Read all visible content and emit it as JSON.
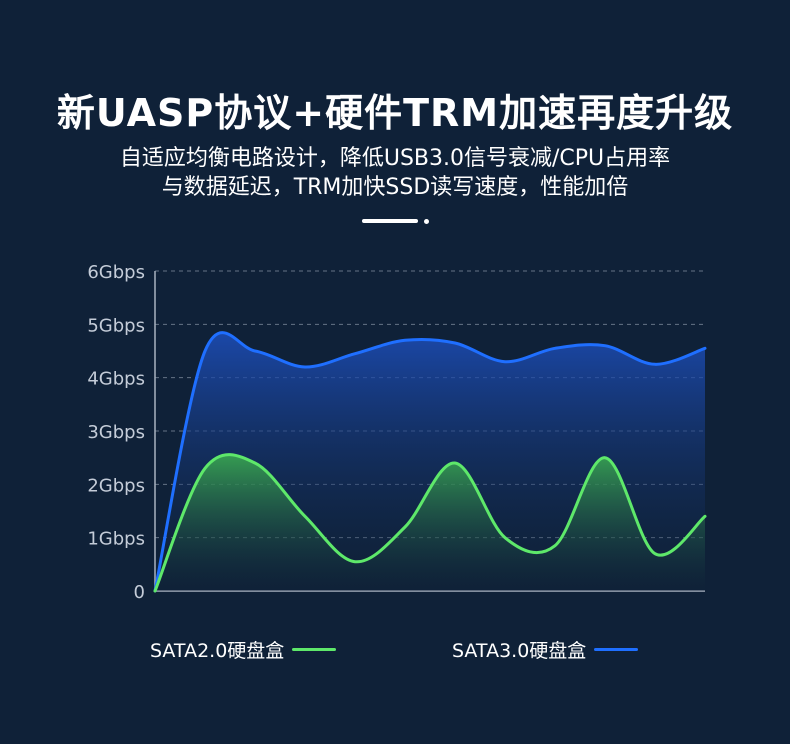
{
  "page": {
    "title": "新UASP协议+硬件TRM加速再度升级",
    "subtitle_lines": [
      "自适应均衡电路设计，降低USB3.0信号衰减/CPU占用率",
      "与数据延迟，TRM加快SSD读写速度，性能加倍"
    ]
  },
  "colors": {
    "background": "#0f2138",
    "sata2": "#5ee86a",
    "sata3": "#1f6fff",
    "grid": "#8a96a8"
  },
  "chart_data": {
    "type": "area",
    "title": "",
    "xlabel": "",
    "ylabel": "",
    "ylim": [
      0,
      6
    ],
    "y_ticks": [
      "0",
      "1Gbps",
      "2Gbps",
      "3Gbps",
      "4Gbps",
      "5Gbps",
      "6Gbps"
    ],
    "grid": true,
    "legend_position": "bottom",
    "x": [
      0,
      1,
      2,
      3,
      4,
      5,
      6,
      7,
      8,
      9,
      10,
      11
    ],
    "series": [
      {
        "name": "SATA2.0硬盘盒",
        "color": "#5ee86a",
        "values": [
          0,
          2.3,
          2.4,
          1.4,
          0.55,
          1.2,
          2.4,
          1.0,
          0.85,
          2.5,
          0.7,
          1.4
        ]
      },
      {
        "name": "SATA3.0硬盘盒",
        "color": "#1f6fff",
        "values": [
          0,
          4.5,
          4.5,
          4.2,
          4.45,
          4.7,
          4.65,
          4.3,
          4.55,
          4.6,
          4.25,
          4.55
        ]
      }
    ]
  }
}
